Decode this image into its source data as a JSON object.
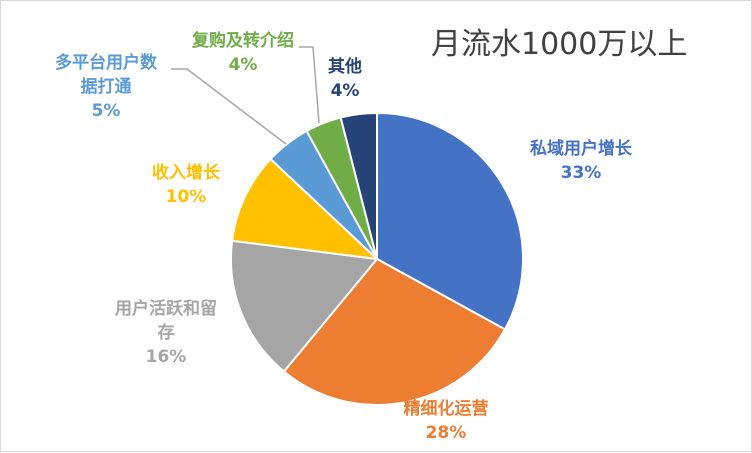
{
  "chart_data": {
    "type": "pie",
    "title": "月流水1000万以上",
    "slices": [
      {
        "label": "私域用户增长",
        "value": 33,
        "display": "33%",
        "color": "#4472c4"
      },
      {
        "label": "精细化运营",
        "value": 28,
        "display": "28%",
        "color": "#ed7d31"
      },
      {
        "label": "用户活跃和留\n存",
        "value": 16,
        "display": "16%",
        "color": "#a5a5a5"
      },
      {
        "label": "收入增长",
        "value": 10,
        "display": "10%",
        "color": "#ffc000"
      },
      {
        "label": "多平台用户数\n据打通",
        "value": 5,
        "display": "5%",
        "color": "#5b9bd5"
      },
      {
        "label": "复购及转介绍",
        "value": 4,
        "display": "4%",
        "color": "#70ad47"
      },
      {
        "label": "其他",
        "value": 4,
        "display": "4%",
        "color": "#264478"
      }
    ],
    "legend": "none"
  }
}
